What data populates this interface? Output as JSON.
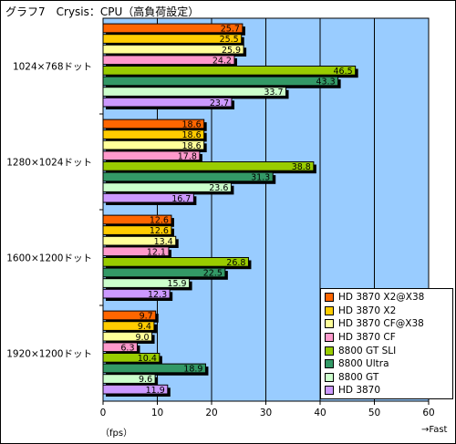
{
  "title": "グラフ7　Crysis：CPU（高負荷設定）",
  "xunit": "（fps）",
  "xfast": "→Fast",
  "chart_data": {
    "type": "bar",
    "orientation": "horizontal",
    "title": "グラフ7　Crysis：CPU（高負荷設定）",
    "xlabel": "（fps）",
    "xlim": [
      0,
      60
    ],
    "xticks": [
      0,
      10,
      20,
      30,
      40,
      50,
      60
    ],
    "grid": true,
    "legend_position": "bottom-right",
    "categories": [
      "1024×768ドット",
      "1280×1024ドット",
      "1600×1200ドット",
      "1920×1200ドット"
    ],
    "series": [
      {
        "name": "HD 3870 X2@X38",
        "color": "#FF6600",
        "values": [
          25.7,
          18.6,
          12.6,
          9.7
        ]
      },
      {
        "name": "HD 3870 X2",
        "color": "#FFCC00",
        "values": [
          25.5,
          18.6,
          12.6,
          9.4
        ]
      },
      {
        "name": "HD 3870 CF@X38",
        "color": "#FFFF99",
        "values": [
          25.9,
          18.6,
          13.4,
          9.0
        ]
      },
      {
        "name": "HD 3870 CF",
        "color": "#FF99CC",
        "values": [
          24.2,
          17.8,
          12.1,
          6.3
        ]
      },
      {
        "name": "8800 GT SLI",
        "color": "#99CC00",
        "values": [
          46.5,
          38.8,
          26.8,
          10.4
        ]
      },
      {
        "name": "8800 Ultra",
        "color": "#339966",
        "values": [
          43.3,
          31.3,
          22.5,
          18.9
        ]
      },
      {
        "name": "8800 GT",
        "color": "#CCFFCC",
        "values": [
          33.7,
          23.6,
          15.9,
          9.6
        ]
      },
      {
        "name": "HD 3870",
        "color": "#CC99FF",
        "values": [
          23.7,
          16.7,
          12.3,
          11.9
        ]
      }
    ],
    "plot_background": "#99CCFF"
  }
}
